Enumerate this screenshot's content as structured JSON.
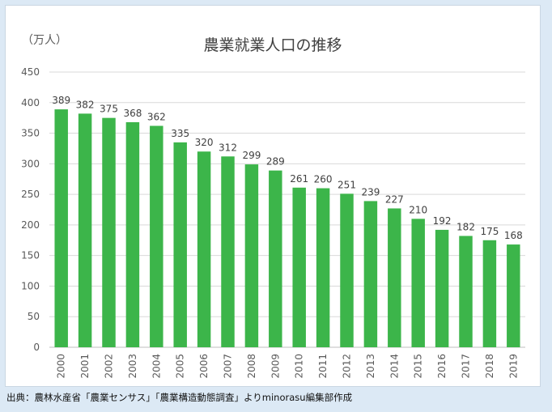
{
  "chart_data": {
    "type": "bar",
    "title": "農業就業人口の推移",
    "unit_label": "（万人）",
    "categories": [
      "2000",
      "2001",
      "2002",
      "2003",
      "2004",
      "2005",
      "2006",
      "2007",
      "2008",
      "2009",
      "2010",
      "2011",
      "2012",
      "2013",
      "2014",
      "2015",
      "2016",
      "2017",
      "2018",
      "2019"
    ],
    "values": [
      389,
      382,
      375,
      368,
      362,
      335,
      320,
      312,
      299,
      289,
      261,
      260,
      251,
      239,
      227,
      210,
      192,
      182,
      175,
      168
    ],
    "data_labels": [
      "389",
      "382",
      "375",
      "368",
      "362",
      "335",
      "320",
      "312",
      "299",
      "289",
      "261",
      "260",
      "251",
      "239",
      "227",
      "210",
      "192",
      "182",
      "175",
      "168"
    ],
    "yticks": [
      "0",
      "50",
      "100",
      "150",
      "200",
      "250",
      "300",
      "350",
      "400",
      "450"
    ],
    "ylim": [
      0,
      450
    ],
    "grid": true,
    "bar_color": "#3cb54a"
  },
  "source_note": "出典：農林水産省「農業センサス」「農業構造動態調査」よりminorasu編集部作成"
}
